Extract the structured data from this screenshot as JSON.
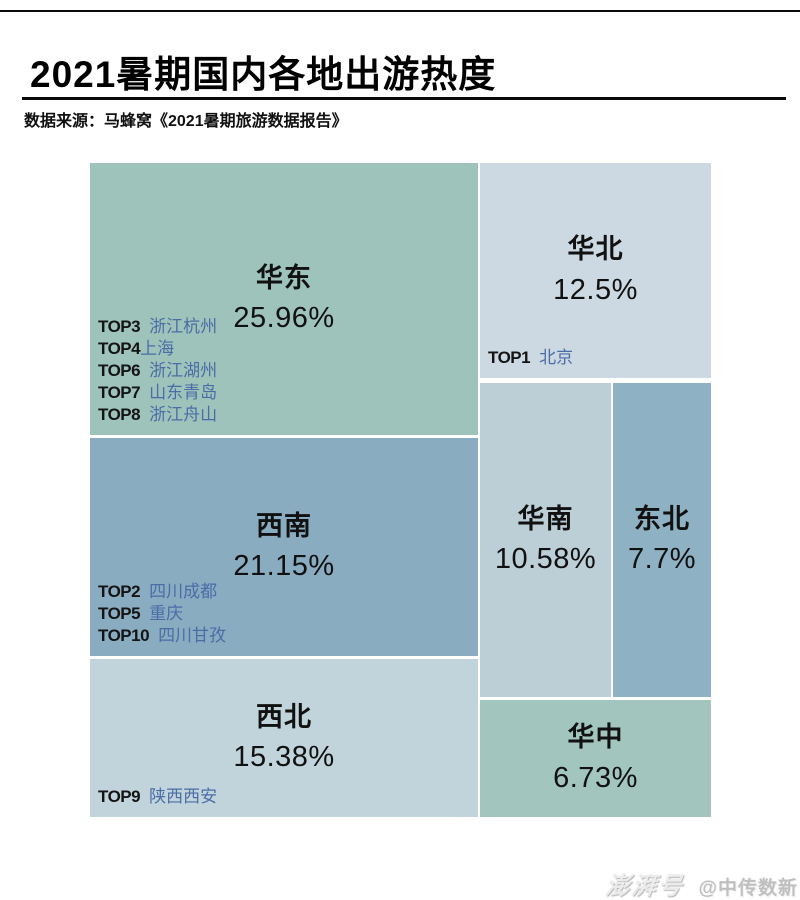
{
  "header": {
    "title": "2021暑期国内各地出游热度",
    "source": "数据来源：马蜂窝《2021暑期旅游数据报告》"
  },
  "footer": {
    "platform": "澎湃号",
    "account": "@中传数新"
  },
  "chart_data": {
    "type": "treemap",
    "title": "2021暑期国内各地出游热度",
    "source": "马蜂窝《2021暑期旅游数据报告》",
    "value_unit": "%",
    "regions": [
      {
        "name": "华东",
        "value": 25.96,
        "label": "25.96%",
        "color": "#9dc3bb",
        "top_destinations": [
          {
            "rank": "TOP3",
            "place": "浙江杭州"
          },
          {
            "rank": "TOP4",
            "place": "上海"
          },
          {
            "rank": "TOP6",
            "place": "浙江湖州"
          },
          {
            "rank": "TOP7",
            "place": "山东青岛"
          },
          {
            "rank": "TOP8",
            "place": "浙江舟山"
          }
        ]
      },
      {
        "name": "西南",
        "value": 21.15,
        "label": "21.15%",
        "color": "#89acc1",
        "top_destinations": [
          {
            "rank": "TOP2",
            "place": "四川成都"
          },
          {
            "rank": "TOP5",
            "place": "重庆"
          },
          {
            "rank": "TOP10",
            "place": "四川甘孜"
          }
        ]
      },
      {
        "name": "西北",
        "value": 15.38,
        "label": "15.38%",
        "color": "#c1d4dc",
        "top_destinations": [
          {
            "rank": "TOP9",
            "place": "陕西西安"
          }
        ]
      },
      {
        "name": "华北",
        "value": 12.5,
        "label": "12.5%",
        "color": "#cdd9e2",
        "top_destinations": [
          {
            "rank": "TOP1",
            "place": "北京"
          }
        ]
      },
      {
        "name": "华南",
        "value": 10.58,
        "label": "10.58%",
        "color": "#bccfd7",
        "top_destinations": []
      },
      {
        "name": "东北",
        "value": 7.7,
        "label": "7.7%",
        "color": "#8eb1c3",
        "top_destinations": []
      },
      {
        "name": "华中",
        "value": 6.73,
        "label": "6.73%",
        "color": "#a2c5be",
        "top_destinations": []
      }
    ]
  }
}
